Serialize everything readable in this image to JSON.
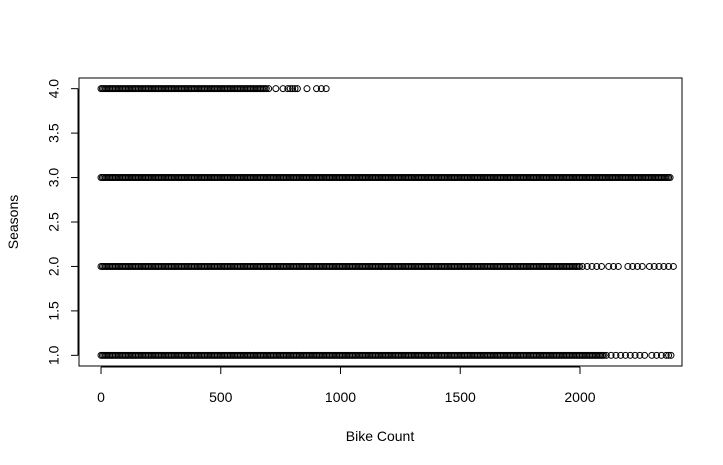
{
  "chart_data": {
    "type": "scatter",
    "title": "",
    "xlabel": "Bike Count",
    "ylabel": "Seasons",
    "xlim": [
      -92,
      2426
    ],
    "ylim": [
      0.88,
      4.12
    ],
    "xticks": [
      0,
      500,
      1000,
      1500,
      2000
    ],
    "yticks": [
      1.0,
      1.5,
      2.0,
      2.5,
      3.0,
      3.5,
      4.0
    ],
    "xtick_labels": [
      "0",
      "500",
      "1000",
      "1500",
      "2000"
    ],
    "ytick_labels": [
      "1.0",
      "1.5",
      "2.0",
      "2.5",
      "3.0",
      "3.5",
      "4.0"
    ],
    "marker": "open-circle",
    "grid": false,
    "groups": [
      {
        "season": 4,
        "dense_range": [
          0,
          690
        ],
        "sparse": [
          700,
          730,
          760,
          780,
          790,
          800,
          810,
          820,
          860,
          900,
          920,
          940
        ]
      },
      {
        "season": 3,
        "dense_range": [
          0,
          2380
        ],
        "sparse": []
      },
      {
        "season": 2,
        "dense_range": [
          0,
          2000
        ],
        "sparse": [
          2010,
          2030,
          2050,
          2070,
          2090,
          2120,
          2140,
          2160,
          2200,
          2220,
          2240,
          2260,
          2290,
          2310,
          2330,
          2350,
          2370,
          2390
        ]
      },
      {
        "season": 1,
        "dense_range": [
          0,
          2100
        ],
        "sparse": [
          2110,
          2130,
          2150,
          2170,
          2190,
          2210,
          2230,
          2250,
          2270,
          2300,
          2320,
          2340,
          2360,
          2370,
          2380
        ]
      }
    ]
  }
}
